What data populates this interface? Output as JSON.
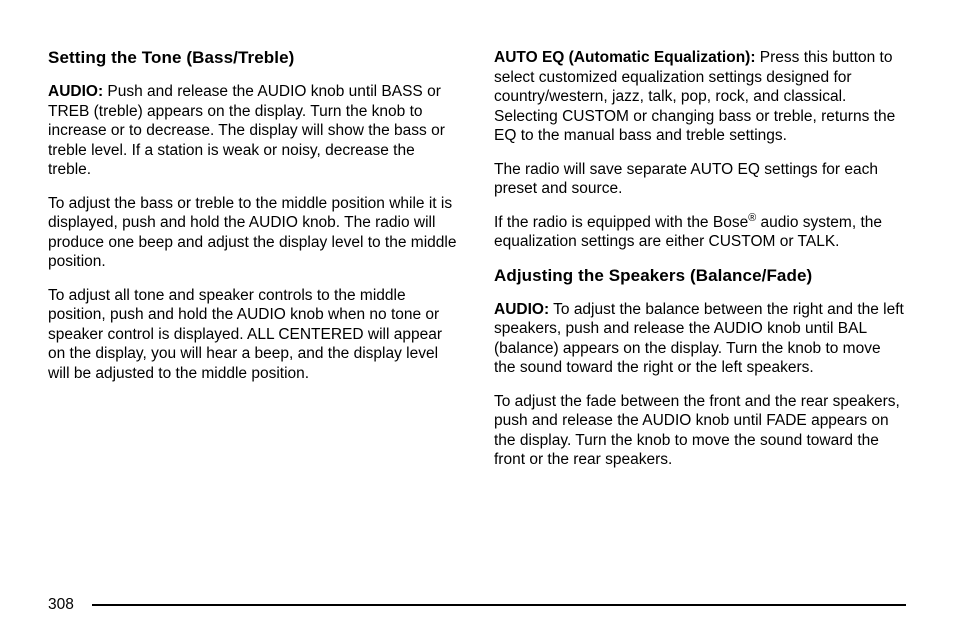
{
  "left": {
    "heading1": "Setting the Tone (Bass/Treble)",
    "p1_runin": "AUDIO:",
    "p1_body": "  Push and release the AUDIO knob until BASS or TREB (treble) appears on the display. Turn the knob to increase or to decrease. The display will show the bass or treble level. If a station is weak or noisy, decrease the treble.",
    "p2": "To adjust the bass or treble to the middle position while it is displayed, push and hold the AUDIO knob. The radio will produce one beep and adjust the display level to the middle position.",
    "p3": "To adjust all tone and speaker controls to the middle position, push and hold the AUDIO knob when no tone or speaker control is displayed. ALL CENTERED will appear on the display, you will hear a beep, and the display level will be adjusted to the middle position."
  },
  "right": {
    "p1_runin": "AUTO EQ (Automatic Equalization):",
    "p1_body": "  Press this button to select customized equalization settings designed for country/western, jazz, talk, pop, rock, and classical. Selecting CUSTOM or changing bass or treble, returns the EQ to the manual bass and treble settings.",
    "p2": "The radio will save separate AUTO EQ settings for each preset and source.",
    "p3_a": "If the radio is equipped with the Bose",
    "p3_sup": "®",
    "p3_b": " audio system, the equalization settings are either CUSTOM or TALK.",
    "heading2": "Adjusting the Speakers (Balance/Fade)",
    "p4_runin": "AUDIO:",
    "p4_body": "  To adjust the balance between the right and the left speakers, push and release the AUDIO knob until BAL (balance) appears on the display. Turn the knob to move the sound toward the right or the left speakers.",
    "p5": "To adjust the fade between the front and the rear speakers, push and release the AUDIO knob until FADE appears on the display. Turn the knob to move the sound toward the front or the rear speakers."
  },
  "page_number": "308"
}
